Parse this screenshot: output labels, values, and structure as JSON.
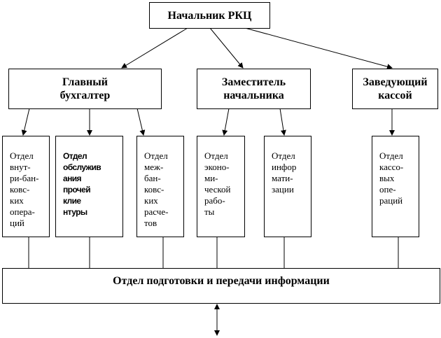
{
  "top": {
    "label": "Начальник РКЦ"
  },
  "managers": [
    {
      "label": "Главный\nбухгалтер"
    },
    {
      "label": "Заместитель\nначальника"
    },
    {
      "label": "Заведующий\nкассой"
    }
  ],
  "departments": [
    {
      "label": "Отдел\nвнут-\nри-бан-\nковс-\nких\nопера-\nций"
    },
    {
      "label": "Отдел\nобслужив\nания\nпрочей\nклие\nнтуры"
    },
    {
      "label": "Отдел\nмеж-\nбан-\nковс-\nких\nрасче-\nтов"
    },
    {
      "label": "Отдел\nэконо-\nми-\nческой\nрабо-\nты"
    },
    {
      "label": "Отдел\nинфор\nмати-\nзации"
    },
    {
      "label": "Отдел\nкассо-\nвых\nопе-\nраций"
    }
  ],
  "bottom": {
    "label": "Отдел подготовки и передачи информации"
  }
}
